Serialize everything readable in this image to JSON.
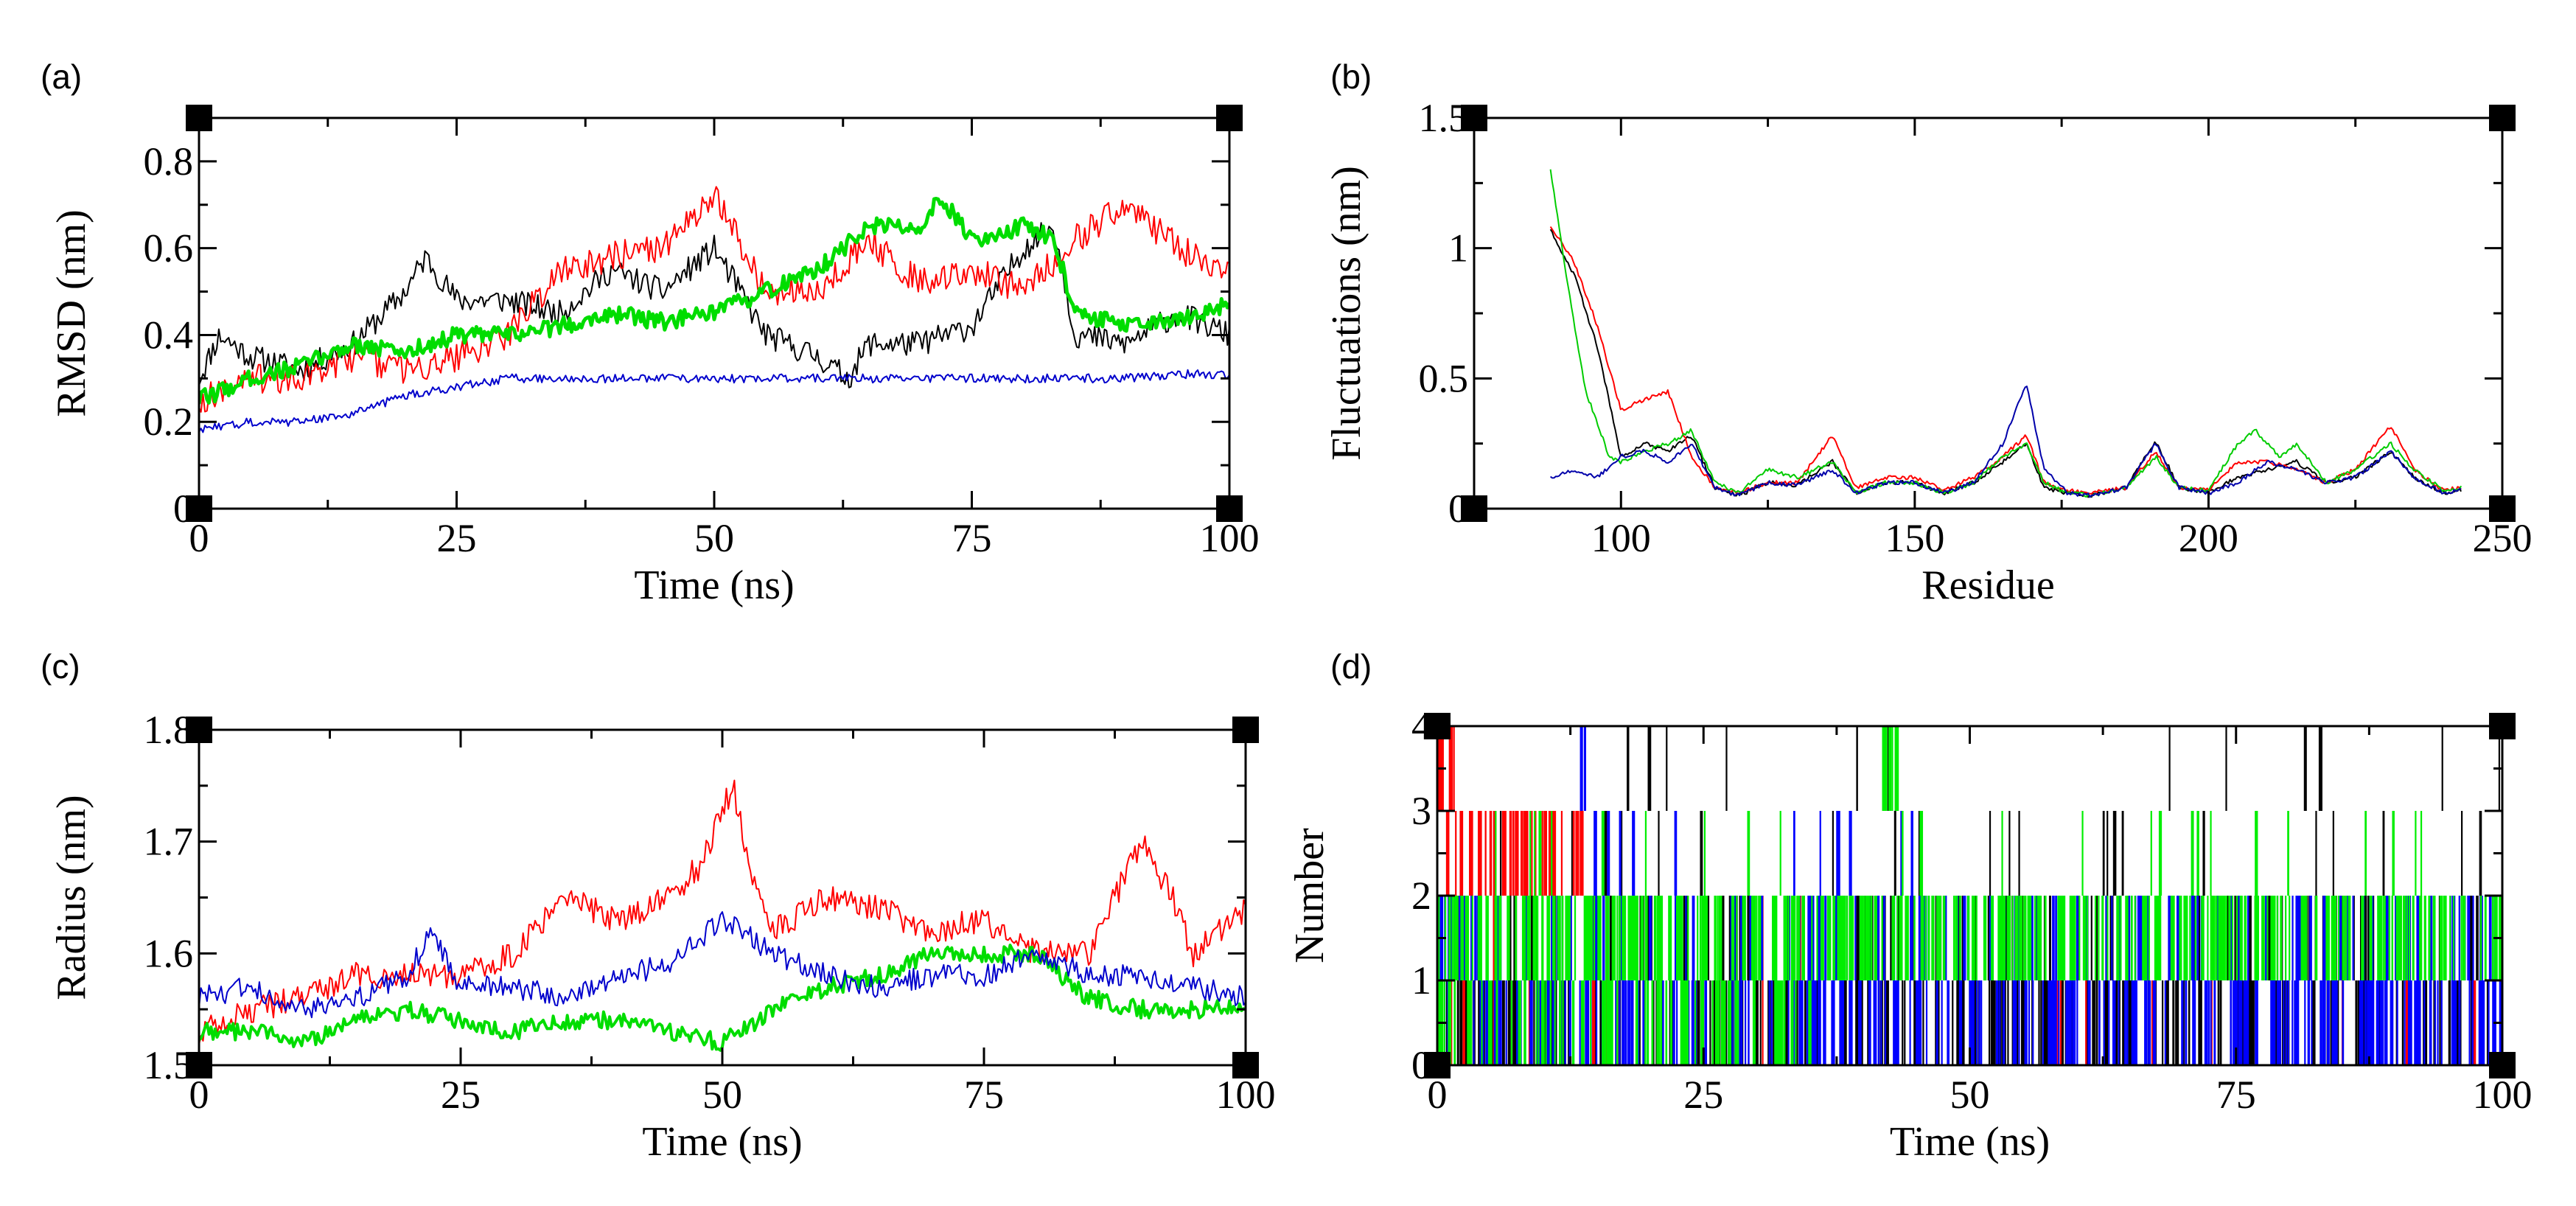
{
  "chart_data": [
    {
      "panel": "(a)",
      "type": "line",
      "xlabel": "Time (ns)",
      "ylabel": "RMSD (nm)",
      "xlim": [
        0,
        100
      ],
      "ylim": [
        0,
        0.9
      ],
      "xticks": [
        0,
        25,
        50,
        75,
        100
      ],
      "yticks": [
        0,
        0.2,
        0.4,
        0.6,
        0.8
      ],
      "xtick_labels": [
        "0",
        "25",
        "50",
        "75",
        "100"
      ],
      "ytick_labels": [
        "0",
        "0.2",
        "0.4",
        "0.6",
        "0.8"
      ],
      "series": [
        {
          "color": "#000000",
          "width": 2,
          "noise": 0.03,
          "x": [
            0,
            2,
            5,
            10,
            15,
            20,
            22,
            25,
            30,
            35,
            40,
            45,
            50,
            55,
            60,
            63,
            65,
            70,
            75,
            80,
            83,
            85,
            90,
            95,
            100
          ],
          "y": [
            0.3,
            0.4,
            0.35,
            0.32,
            0.38,
            0.5,
            0.58,
            0.48,
            0.48,
            0.45,
            0.55,
            0.5,
            0.6,
            0.4,
            0.35,
            0.3,
            0.38,
            0.38,
            0.42,
            0.6,
            0.65,
            0.4,
            0.38,
            0.45,
            0.4
          ]
        },
        {
          "color": "#ff0000",
          "width": 2,
          "noise": 0.035,
          "x": [
            0,
            5,
            10,
            15,
            20,
            25,
            30,
            35,
            40,
            45,
            50,
            55,
            60,
            65,
            70,
            75,
            80,
            85,
            90,
            95,
            100
          ],
          "y": [
            0.25,
            0.3,
            0.3,
            0.35,
            0.32,
            0.35,
            0.4,
            0.55,
            0.58,
            0.6,
            0.72,
            0.5,
            0.5,
            0.62,
            0.52,
            0.55,
            0.5,
            0.62,
            0.7,
            0.6,
            0.55
          ]
        },
        {
          "color": "#00dd00",
          "width": 5,
          "noise": 0.02,
          "x": [
            0,
            5,
            10,
            15,
            20,
            25,
            30,
            35,
            40,
            45,
            50,
            55,
            60,
            65,
            70,
            72,
            75,
            80,
            83,
            85,
            90,
            95,
            100
          ],
          "y": [
            0.25,
            0.3,
            0.33,
            0.38,
            0.36,
            0.4,
            0.4,
            0.42,
            0.45,
            0.43,
            0.45,
            0.5,
            0.55,
            0.65,
            0.65,
            0.72,
            0.62,
            0.65,
            0.62,
            0.45,
            0.42,
            0.43,
            0.47
          ]
        },
        {
          "color": "#0000cc",
          "width": 2,
          "noise": 0.01,
          "x": [
            0,
            5,
            10,
            15,
            20,
            25,
            30,
            40,
            50,
            60,
            70,
            80,
            90,
            95,
            100
          ],
          "y": [
            0.18,
            0.2,
            0.2,
            0.22,
            0.26,
            0.28,
            0.3,
            0.3,
            0.3,
            0.3,
            0.3,
            0.3,
            0.3,
            0.31,
            0.31
          ]
        }
      ]
    },
    {
      "panel": "(b)",
      "type": "line",
      "xlabel": "Residue",
      "ylabel": "Fluctuations (nm)",
      "xlim": [
        75,
        250
      ],
      "ylim": [
        0,
        1.5
      ],
      "xticks": [
        100,
        150,
        200,
        250
      ],
      "yticks": [
        0,
        0.5,
        1,
        1.5
      ],
      "xtick_labels": [
        "100",
        "150",
        "200",
        "250"
      ],
      "ytick_labels": [
        "0",
        "0.5",
        "1",
        "1.5"
      ],
      "series": [
        {
          "color": "#000000",
          "width": 2,
          "noise": 0.008,
          "x": [
            88,
            92,
            96,
            100,
            104,
            108,
            112,
            116,
            120,
            125,
            130,
            136,
            140,
            145,
            150,
            155,
            160,
            165,
            169,
            172,
            176,
            180,
            186,
            191,
            195,
            200,
            205,
            210,
            215,
            220,
            225,
            231,
            235,
            240,
            243
          ],
          "y": [
            1.07,
            0.9,
            0.62,
            0.2,
            0.25,
            0.22,
            0.28,
            0.08,
            0.05,
            0.1,
            0.09,
            0.18,
            0.06,
            0.1,
            0.1,
            0.06,
            0.1,
            0.18,
            0.25,
            0.08,
            0.06,
            0.05,
            0.08,
            0.26,
            0.08,
            0.06,
            0.12,
            0.15,
            0.18,
            0.1,
            0.12,
            0.22,
            0.12,
            0.06,
            0.07
          ]
        },
        {
          "color": "#ff0000",
          "width": 2,
          "noise": 0.008,
          "x": [
            88,
            92,
            96,
            100,
            104,
            108,
            112,
            116,
            120,
            125,
            130,
            136,
            140,
            145,
            150,
            155,
            160,
            165,
            169,
            172,
            176,
            180,
            186,
            191,
            195,
            200,
            205,
            210,
            215,
            220,
            225,
            231,
            235,
            240,
            243
          ],
          "y": [
            1.08,
            0.95,
            0.7,
            0.38,
            0.42,
            0.45,
            0.2,
            0.08,
            0.06,
            0.1,
            0.1,
            0.28,
            0.08,
            0.12,
            0.12,
            0.07,
            0.12,
            0.2,
            0.28,
            0.1,
            0.07,
            0.06,
            0.08,
            0.22,
            0.08,
            0.07,
            0.18,
            0.18,
            0.15,
            0.1,
            0.15,
            0.32,
            0.15,
            0.07,
            0.08
          ]
        },
        {
          "color": "#00cc00",
          "width": 2,
          "noise": 0.008,
          "x": [
            88,
            91,
            94,
            98,
            100,
            104,
            108,
            112,
            116,
            120,
            125,
            130,
            136,
            140,
            145,
            150,
            155,
            160,
            165,
            169,
            172,
            176,
            180,
            186,
            191,
            195,
            200,
            205,
            208,
            212,
            215,
            220,
            225,
            231,
            235,
            240,
            243
          ],
          "y": [
            1.3,
            0.85,
            0.45,
            0.2,
            0.18,
            0.22,
            0.25,
            0.3,
            0.1,
            0.06,
            0.15,
            0.12,
            0.18,
            0.06,
            0.1,
            0.1,
            0.06,
            0.1,
            0.2,
            0.25,
            0.1,
            0.06,
            0.05,
            0.08,
            0.2,
            0.08,
            0.07,
            0.25,
            0.3,
            0.2,
            0.25,
            0.1,
            0.15,
            0.25,
            0.15,
            0.07,
            0.08
          ]
        },
        {
          "color": "#0000aa",
          "width": 2,
          "noise": 0.008,
          "x": [
            88,
            92,
            96,
            100,
            104,
            108,
            112,
            116,
            120,
            125,
            130,
            136,
            140,
            145,
            150,
            155,
            160,
            165,
            169,
            172,
            176,
            180,
            186,
            191,
            195,
            200,
            205,
            210,
            215,
            220,
            225,
            231,
            235,
            240,
            243
          ],
          "y": [
            0.12,
            0.15,
            0.12,
            0.2,
            0.22,
            0.18,
            0.25,
            0.08,
            0.05,
            0.1,
            0.09,
            0.15,
            0.06,
            0.1,
            0.1,
            0.06,
            0.1,
            0.25,
            0.48,
            0.15,
            0.06,
            0.05,
            0.08,
            0.25,
            0.08,
            0.06,
            0.1,
            0.18,
            0.15,
            0.1,
            0.12,
            0.22,
            0.12,
            0.06,
            0.07
          ]
        }
      ]
    },
    {
      "panel": "(c)",
      "type": "line",
      "xlabel": "Time (ns)",
      "ylabel": "Radius (nm)",
      "xlim": [
        0,
        100
      ],
      "ylim": [
        1.5,
        1.8
      ],
      "xticks": [
        0,
        25,
        50,
        75,
        100
      ],
      "yticks": [
        1.5,
        1.6,
        1.7,
        1.8
      ],
      "xtick_labels": [
        "0",
        "25",
        "50",
        "75",
        "100"
      ],
      "ytick_labels": [
        "1.5",
        "1.6",
        "1.7",
        "1.8"
      ],
      "series": [
        {
          "color": "#ff0000",
          "width": 2,
          "noise": 0.012,
          "x": [
            0,
            5,
            10,
            15,
            20,
            25,
            30,
            35,
            40,
            45,
            48,
            51,
            53,
            55,
            60,
            65,
            70,
            75,
            80,
            85,
            88,
            90,
            93,
            95,
            100
          ],
          "y": [
            1.53,
            1.55,
            1.56,
            1.58,
            1.58,
            1.58,
            1.6,
            1.65,
            1.63,
            1.65,
            1.68,
            1.75,
            1.66,
            1.62,
            1.65,
            1.64,
            1.62,
            1.63,
            1.6,
            1.6,
            1.66,
            1.7,
            1.65,
            1.6,
            1.64
          ]
        },
        {
          "color": "#00dd00",
          "width": 4,
          "noise": 0.008,
          "x": [
            0,
            5,
            10,
            15,
            20,
            25,
            30,
            35,
            40,
            45,
            50,
            55,
            60,
            65,
            70,
            75,
            80,
            85,
            90,
            95,
            100
          ],
          "y": [
            1.53,
            1.53,
            1.52,
            1.54,
            1.55,
            1.54,
            1.53,
            1.54,
            1.54,
            1.53,
            1.52,
            1.55,
            1.57,
            1.58,
            1.6,
            1.6,
            1.6,
            1.56,
            1.55,
            1.55,
            1.55
          ]
        },
        {
          "color": "#0000cc",
          "width": 2,
          "noise": 0.01,
          "x": [
            0,
            5,
            10,
            15,
            20,
            22,
            25,
            30,
            35,
            40,
            45,
            50,
            55,
            60,
            65,
            70,
            75,
            80,
            85,
            90,
            95,
            100
          ],
          "y": [
            1.56,
            1.57,
            1.55,
            1.56,
            1.58,
            1.62,
            1.57,
            1.57,
            1.56,
            1.58,
            1.59,
            1.63,
            1.6,
            1.58,
            1.57,
            1.58,
            1.58,
            1.6,
            1.58,
            1.58,
            1.57,
            1.56
          ]
        }
      ]
    },
    {
      "panel": "(d)",
      "type": "step",
      "xlabel": "Time (ns)",
      "ylabel": "Number",
      "xlim": [
        0,
        100
      ],
      "ylim": [
        0,
        4
      ],
      "xticks": [
        0,
        25,
        50,
        75,
        100
      ],
      "yticks": [
        0,
        1,
        2,
        3,
        4
      ],
      "xtick_labels": [
        "0",
        "25",
        "50",
        "75",
        "100"
      ],
      "ytick_labels": [
        "0",
        "1",
        "2",
        "3",
        "4"
      ],
      "series": [
        {
          "color": "#000000",
          "bands": [
            [
              0,
              1,
              0,
              100,
              260
            ],
            [
              1,
              2,
              0,
              100,
              130
            ],
            [
              2,
              3,
              5,
              100,
              26
            ],
            [
              3,
              4,
              5,
              100,
              12
            ]
          ]
        },
        {
          "color": "#ff0000",
          "bands": [
            [
              2,
              3,
              0,
              14,
              46
            ],
            [
              3,
              4,
              0,
              1.5,
              8
            ],
            [
              0,
              2,
              0,
              45,
              10
            ],
            [
              0,
              1,
              55,
              100,
              8
            ]
          ]
        },
        {
          "color": "#0000ff",
          "bands": [
            [
              0,
              1,
              0,
              100,
              280
            ],
            [
              1,
              2,
              0,
              100,
              170
            ],
            [
              2,
              3,
              12,
              45,
              12
            ],
            [
              3,
              4,
              13,
              14,
              3
            ]
          ]
        },
        {
          "color": "#00ee00",
          "bands": [
            [
              1,
              2,
              0,
              100,
              380
            ],
            [
              0,
              1,
              0,
              35,
              80
            ],
            [
              2,
              3,
              0,
              95,
              26
            ],
            [
              3,
              4,
              40,
              44,
              6
            ]
          ]
        }
      ],
      "markers": [
        {
          "x": 0.5,
          "y": 4,
          "color": "#00d8d8"
        },
        {
          "x": 99.8,
          "y": 0.03,
          "color": "#dd2277"
        }
      ]
    }
  ]
}
